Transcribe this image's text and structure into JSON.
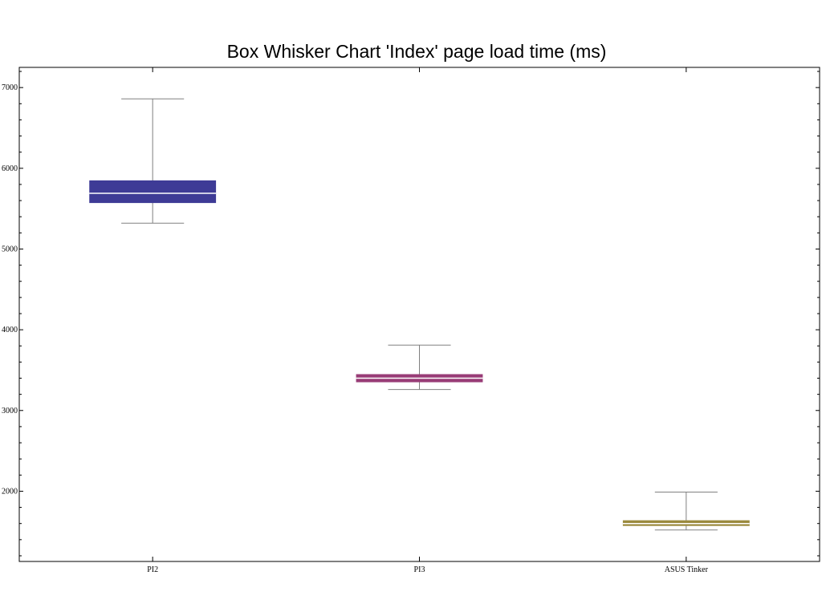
{
  "chart_data": {
    "type": "box",
    "title": "Box Whisker Chart 'Index' page load time (ms)",
    "xlabel": "",
    "ylabel": "",
    "categories": [
      "PI2",
      "PI3",
      "ASUS Tinker"
    ],
    "boxes": [
      {
        "category": "PI2",
        "min": 5320,
        "q1": 5570,
        "median": 5690,
        "q3": 5850,
        "max": 6860,
        "color": "#3e3b96"
      },
      {
        "category": "PI3",
        "min": 3260,
        "q1": 3350,
        "median": 3400,
        "q3": 3450,
        "max": 3810,
        "color": "#983c76"
      },
      {
        "category": "ASUS Tinker",
        "min": 1520,
        "q1": 1570,
        "median": 1600,
        "q3": 1640,
        "max": 1990,
        "color": "#9b8a3e"
      }
    ],
    "y_ticks": [
      "7000",
      "6000",
      "5000",
      "4000",
      "3000",
      "2000"
    ],
    "ylim": [
      1130,
      7250
    ],
    "grid": false,
    "whisker_color": "#808080",
    "median_color": "#ffffff"
  }
}
